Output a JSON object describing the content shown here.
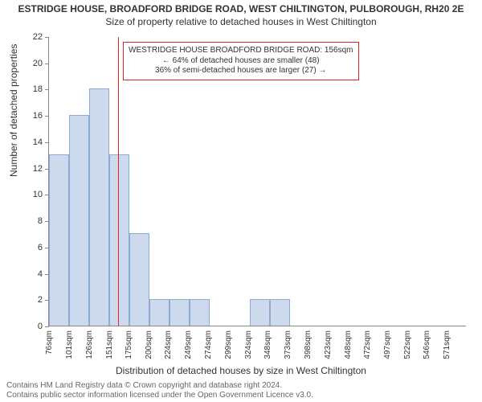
{
  "titles": {
    "main": "ESTRIDGE HOUSE, BROADFORD BRIDGE ROAD, WEST CHILTINGTON, PULBOROUGH, RH20 2E",
    "sub": "Size of property relative to detached houses in West Chiltington"
  },
  "ylabel": "Number of detached properties",
  "xlabel": "Distribution of detached houses by size in West Chiltington",
  "footer": {
    "line1": "Contains HM Land Registry data © Crown copyright and database right 2024.",
    "line2": "Contains public sector information licensed under the Open Government Licence v3.0."
  },
  "chart": {
    "type": "histogram",
    "y_max": 22,
    "y_ticks": [
      0,
      2,
      4,
      6,
      8,
      10,
      12,
      14,
      16,
      18,
      20,
      22
    ],
    "x_min": 70,
    "x_max": 590,
    "x_tick_labels": [
      "76sqm",
      "101sqm",
      "126sqm",
      "151sqm",
      "175sqm",
      "200sqm",
      "224sqm",
      "249sqm",
      "274sqm",
      "299sqm",
      "324sqm",
      "348sqm",
      "373sqm",
      "398sqm",
      "423sqm",
      "448sqm",
      "472sqm",
      "497sqm",
      "522sqm",
      "546sqm",
      "571sqm"
    ],
    "x_tick_positions": [
      76,
      101,
      126,
      151,
      175,
      200,
      224,
      249,
      274,
      299,
      324,
      348,
      373,
      398,
      423,
      448,
      472,
      497,
      522,
      546,
      571
    ],
    "bars": [
      {
        "start": 70,
        "end": 95,
        "value": 13
      },
      {
        "start": 95,
        "end": 120,
        "value": 16
      },
      {
        "start": 120,
        "end": 145,
        "value": 18
      },
      {
        "start": 145,
        "end": 170,
        "value": 13
      },
      {
        "start": 170,
        "end": 195,
        "value": 7
      },
      {
        "start": 195,
        "end": 220,
        "value": 2
      },
      {
        "start": 220,
        "end": 245,
        "value": 2
      },
      {
        "start": 245,
        "end": 270,
        "value": 2
      },
      {
        "start": 270,
        "end": 295,
        "value": 0
      },
      {
        "start": 295,
        "end": 320,
        "value": 0
      },
      {
        "start": 320,
        "end": 345,
        "value": 2
      },
      {
        "start": 345,
        "end": 370,
        "value": 2
      }
    ],
    "bar_fill": "#cdd9ec",
    "bar_stroke": "#8faad2",
    "ref_line_x": 156,
    "ref_line_color": "#d22",
    "background": "#ffffff"
  },
  "annotation": {
    "line1": "WESTRIDGE HOUSE BROADFORD BRIDGE ROAD: 156sqm",
    "line2": "← 64% of detached houses are smaller (48)",
    "line3": "36% of semi-detached houses are larger (27) →",
    "border_color": "#d22"
  }
}
